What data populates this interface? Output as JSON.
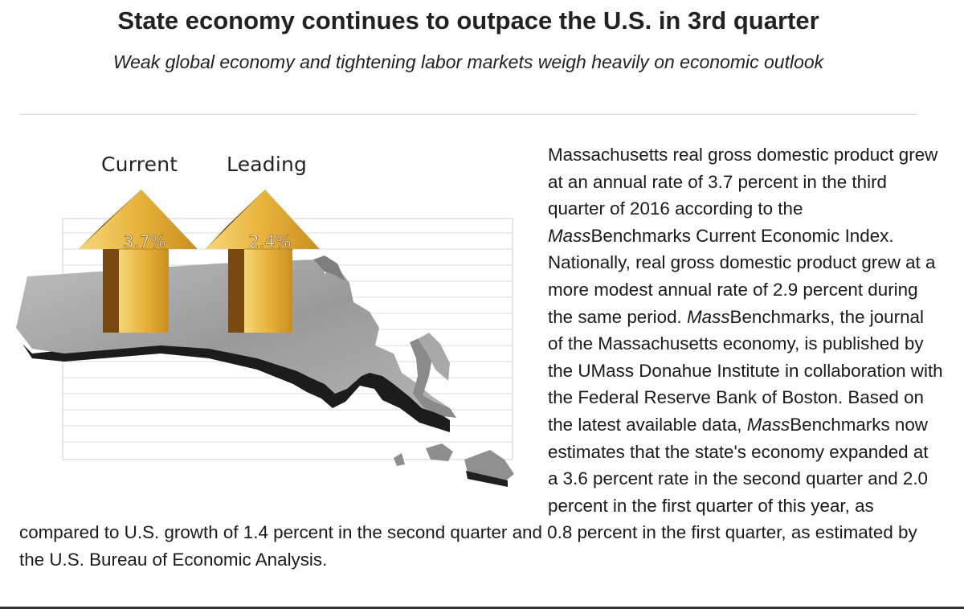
{
  "headline": "State economy continues to outpace the U.S. in 3rd quarter",
  "subheadline": "Weak global economy and tightening labor markets weigh heavily on economic outlook",
  "graphic": {
    "current_label": "Current",
    "current_value": "3.7%",
    "leading_label": "Leading",
    "leading_value": "2.4%",
    "colors": {
      "arrow_gold": "#e7b33a",
      "arrow_dark": "#6b3d0e",
      "map_gray": "#9a9a9a"
    }
  },
  "article": {
    "p1": "Massachusetts real gross domestic product grew at an annual rate of 3.7 percent in the third quarter of 2016 according to the ",
    "mass1": "Mass",
    "p2": "Benchmarks Current Economic Index. Nationally, real gross domestic product grew at a more modest annual rate of 2.9 percent during the same period. ",
    "mass2": "Mass",
    "p3": "Benchmarks, the journal of the Massachusetts economy, is published by the UMass Donahue Institute in collaboration with the Federal Reserve Bank of Boston. Based on the latest available data, ",
    "mass3": "Mass",
    "p4": "Benchmarks now estimates that the state's economy expanded at a 3.6 percent rate in the second quarter and 2.0 percent in the first quarter of this year, as compared to U.S. growth of 1.4 percent in the second quarter and 0.8 percent in the first quarter, as estimated by the U.S. Bureau of Economic Analysis."
  }
}
